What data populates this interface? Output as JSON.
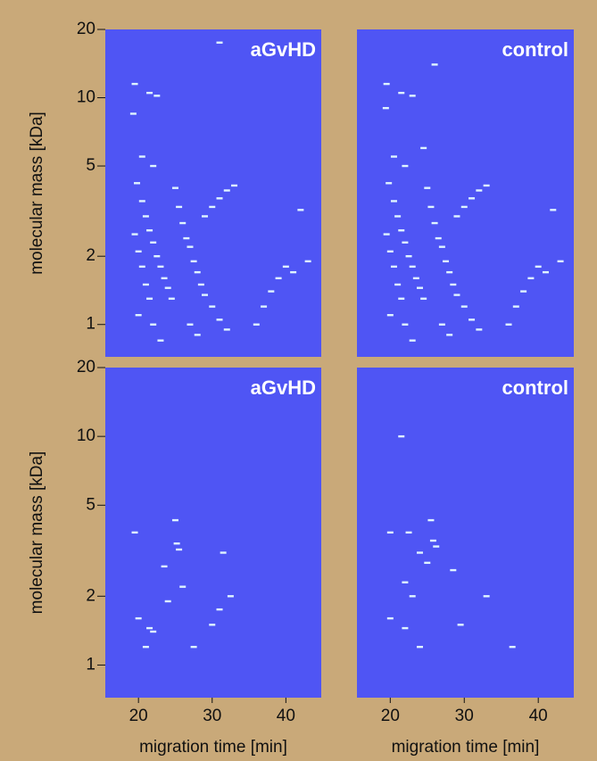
{
  "chart_data": [
    {
      "type": "scatter",
      "title": "aGvHD",
      "ylabel": "molecular mass [kDa]",
      "log_y": true,
      "color": "#dff4ff",
      "xlim": [
        15.5,
        44.8
      ],
      "ylim": [
        0.72,
        20
      ],
      "yticks": [
        1,
        2,
        5,
        10,
        20
      ],
      "x": [
        19.5,
        19.3,
        21.5,
        22.5,
        19.8,
        20.5,
        21,
        21.5,
        22,
        22.5,
        23,
        23.5,
        24,
        24.5,
        19.5,
        20,
        20.5,
        21,
        21.5,
        20,
        22,
        23,
        25,
        25.5,
        26,
        26.5,
        27,
        27.5,
        28,
        28.5,
        29,
        30,
        31,
        32,
        29,
        30,
        31,
        32,
        33,
        27,
        28,
        36,
        37,
        38,
        39,
        40,
        41,
        43,
        42,
        20.5,
        22,
        31
      ],
      "y": [
        11.5,
        8.5,
        10.5,
        10.2,
        4.2,
        3.5,
        3.0,
        2.6,
        2.3,
        2.0,
        1.8,
        1.6,
        1.45,
        1.3,
        2.5,
        2.1,
        1.8,
        1.5,
        1.3,
        1.1,
        1.0,
        0.85,
        4.0,
        3.3,
        2.8,
        2.4,
        2.2,
        1.9,
        1.7,
        1.5,
        1.35,
        1.2,
        1.05,
        0.95,
        3.0,
        3.3,
        3.6,
        3.9,
        4.1,
        1.0,
        0.9,
        1.0,
        1.2,
        1.4,
        1.6,
        1.8,
        1.7,
        1.9,
        3.2,
        5.5,
        5.0,
        17.5
      ]
    },
    {
      "type": "scatter",
      "title": "control",
      "log_y": true,
      "color": "#dff4ff",
      "xlim": [
        15.5,
        44.8
      ],
      "ylim": [
        0.72,
        20
      ],
      "x": [
        19.5,
        19.4,
        21.5,
        23,
        19.8,
        20.5,
        21,
        21.5,
        22,
        22.5,
        23,
        23.5,
        24,
        24.5,
        19.5,
        20,
        20.5,
        21,
        21.5,
        20,
        22,
        23,
        25,
        25.5,
        26,
        26.5,
        27,
        27.5,
        28,
        28.5,
        29,
        30,
        31,
        32,
        29,
        30,
        31,
        32,
        33,
        27,
        28,
        36,
        37,
        38,
        39,
        40,
        41,
        43,
        42,
        20.5,
        22,
        26,
        24.5
      ],
      "y": [
        11.5,
        9.0,
        10.5,
        10.2,
        4.2,
        3.5,
        3.0,
        2.6,
        2.3,
        2.0,
        1.8,
        1.6,
        1.45,
        1.3,
        2.5,
        2.1,
        1.8,
        1.5,
        1.3,
        1.1,
        1.0,
        0.85,
        4.0,
        3.3,
        2.8,
        2.4,
        2.2,
        1.9,
        1.7,
        1.5,
        1.35,
        1.2,
        1.05,
        0.95,
        3.0,
        3.3,
        3.6,
        3.9,
        4.1,
        1.0,
        0.9,
        1.0,
        1.2,
        1.4,
        1.6,
        1.8,
        1.7,
        1.9,
        3.2,
        5.5,
        5.0,
        14,
        6.0
      ]
    },
    {
      "type": "scatter",
      "title": "aGvHD",
      "ylabel": "molecular mass [kDa]",
      "xlabel": "migration time [min]",
      "log_y": true,
      "color": "#dff4ff",
      "xlim": [
        15.5,
        44.8
      ],
      "ylim": [
        0.72,
        20
      ],
      "yticks": [
        1,
        2,
        5,
        10,
        20
      ],
      "xticks": [
        20,
        30,
        40
      ],
      "x": [
        19.5,
        25,
        25.2,
        25.5,
        23.5,
        20,
        21.5,
        22,
        21,
        27.5,
        30,
        31,
        31.5,
        32.5,
        26,
        24
      ],
      "y": [
        3.8,
        4.3,
        3.4,
        3.2,
        2.7,
        1.6,
        1.45,
        1.4,
        1.2,
        1.2,
        1.5,
        1.75,
        3.1,
        2.0,
        2.2,
        1.9
      ]
    },
    {
      "type": "scatter",
      "title": "control",
      "xlabel": "migration time [min]",
      "log_y": true,
      "color": "#dff4ff",
      "xlim": [
        15.5,
        44.8
      ],
      "ylim": [
        0.72,
        20
      ],
      "xticks": [
        20,
        30,
        40
      ],
      "x": [
        21.5,
        20,
        22.5,
        24,
        25.5,
        25.8,
        26.2,
        25,
        28.5,
        22,
        23,
        20,
        22,
        24,
        29.5,
        33,
        36.5
      ],
      "y": [
        10,
        3.8,
        3.8,
        3.1,
        4.3,
        3.5,
        3.3,
        2.8,
        2.6,
        2.3,
        2.0,
        1.6,
        1.45,
        1.2,
        1.5,
        2.0,
        1.2
      ]
    }
  ]
}
